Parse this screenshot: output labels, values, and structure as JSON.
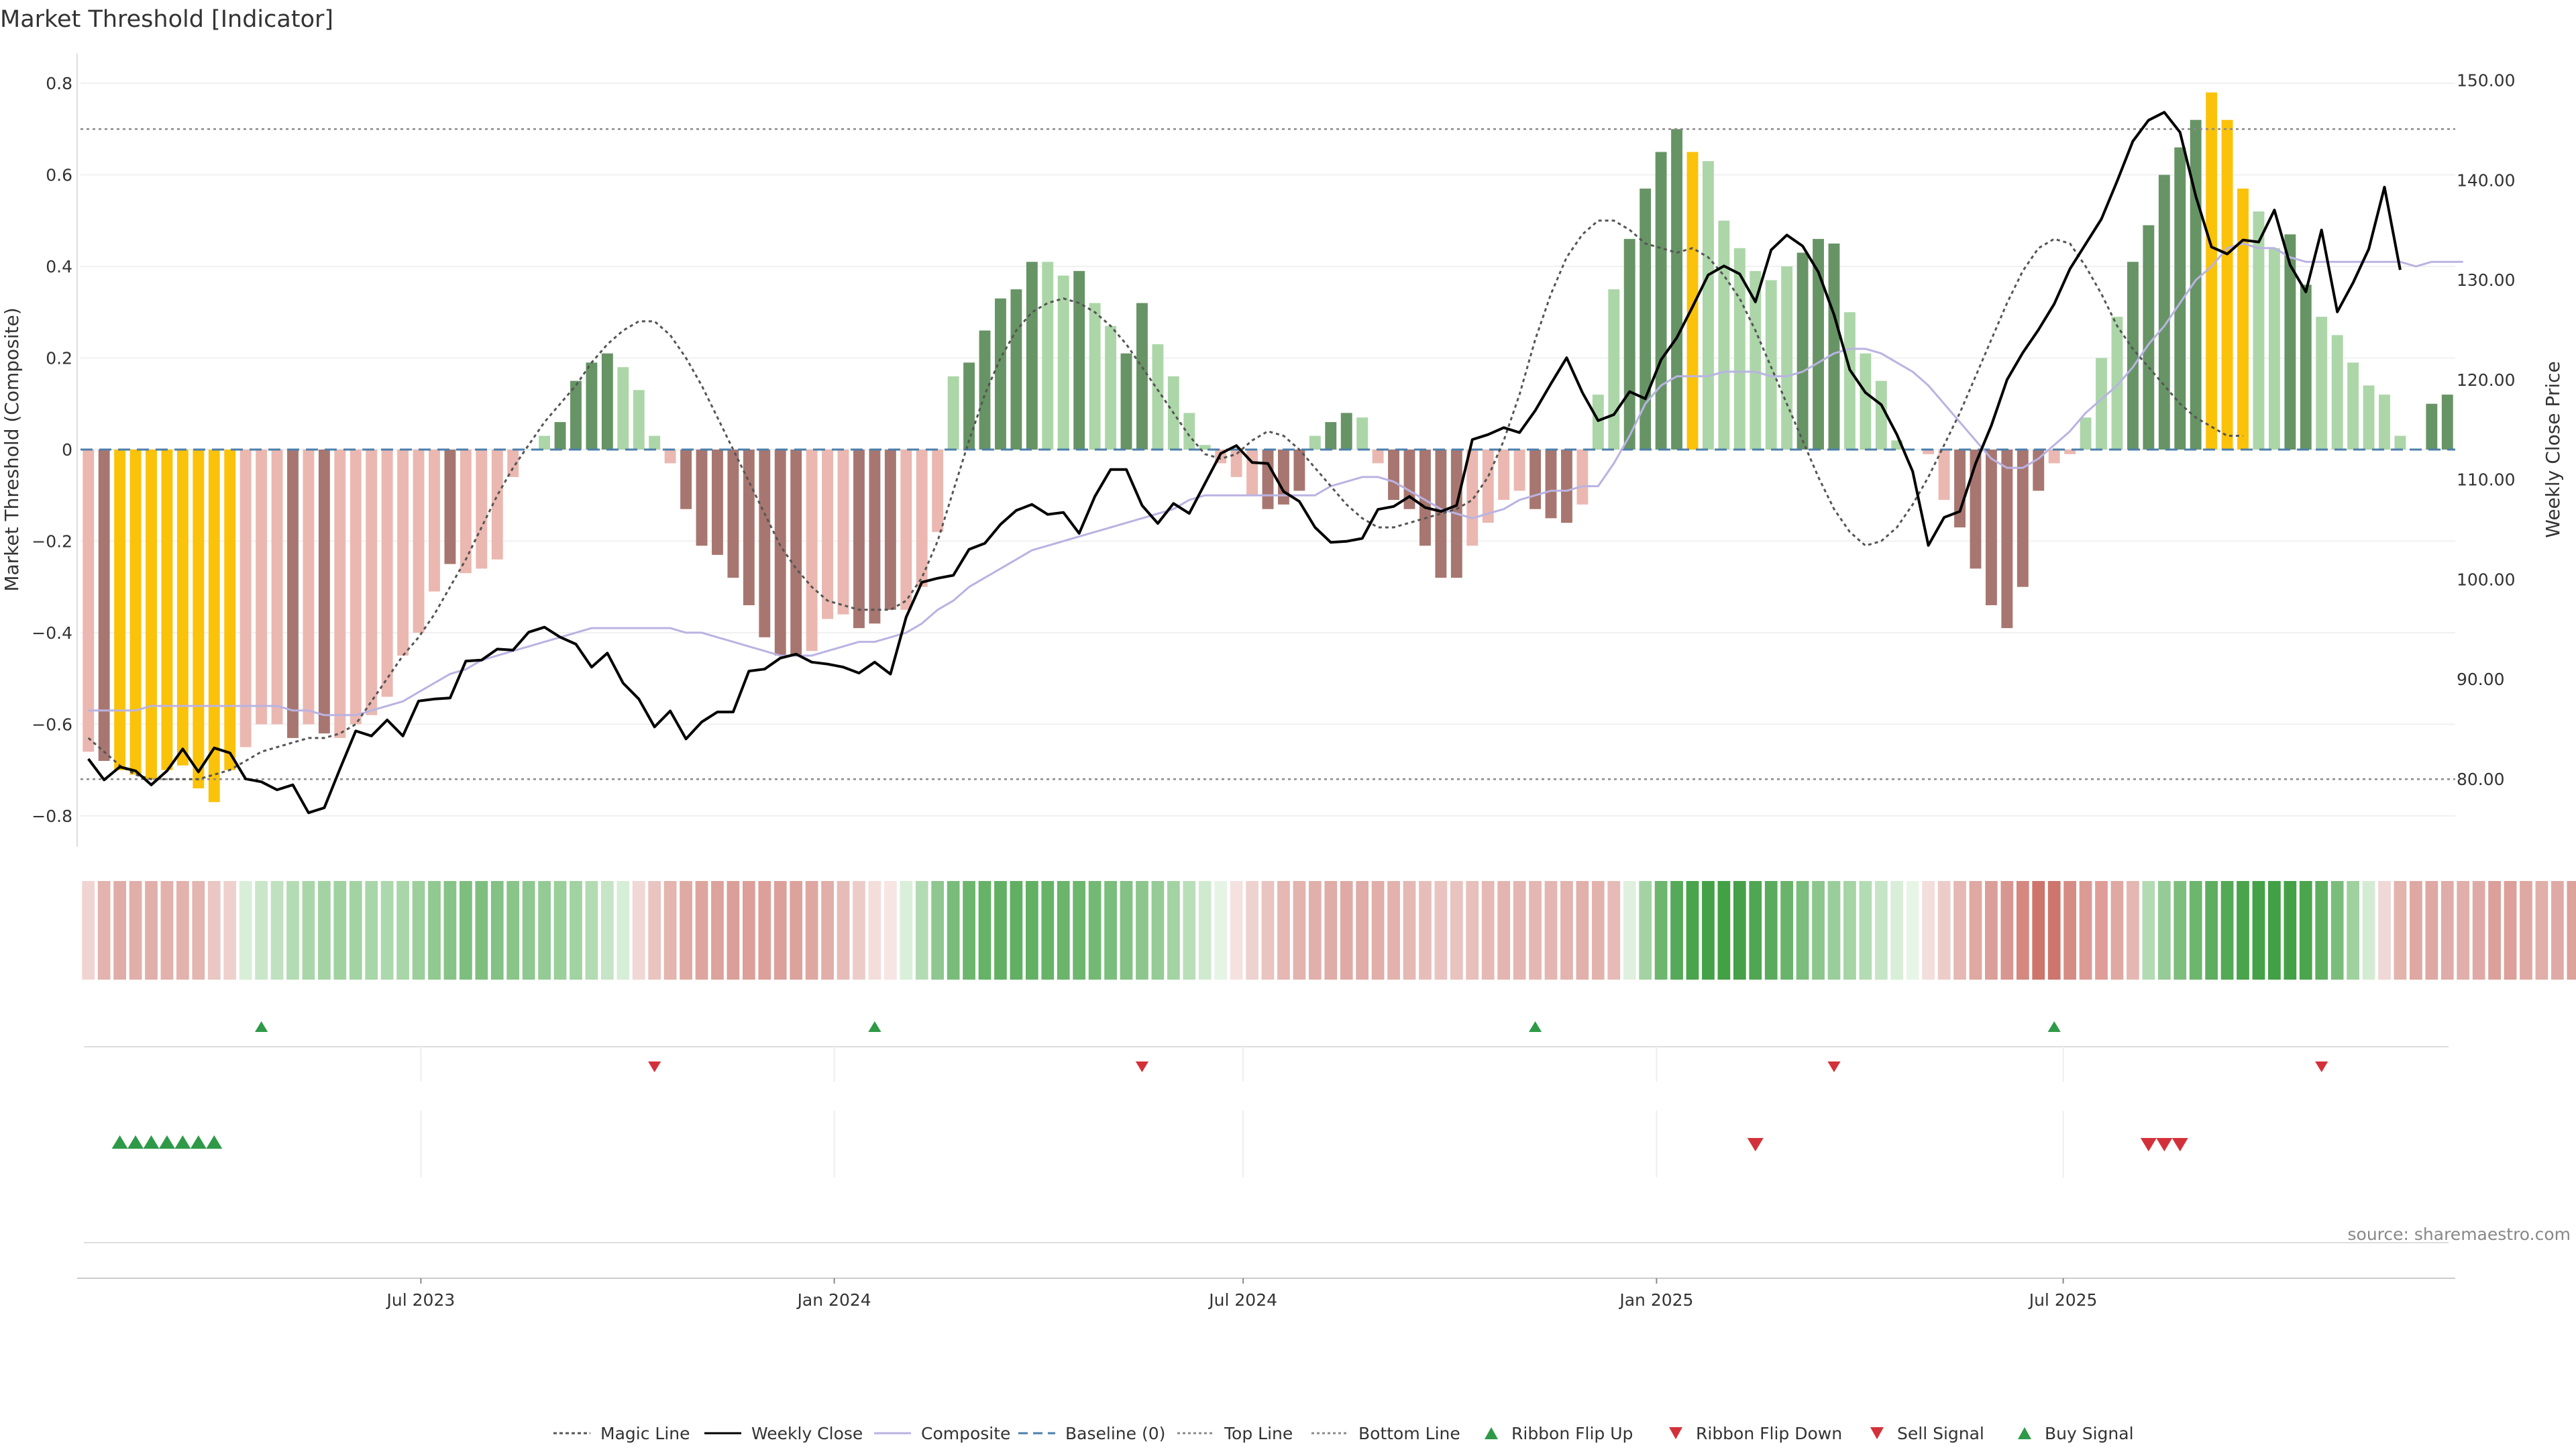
{
  "title": "Market Threshold [Indicator]",
  "source": "source: sharemaestro.com",
  "colors": {
    "bear_light": "#eab8b0",
    "bear_dark": "#a87670",
    "bull_light": "#acd6a8",
    "bull_dark": "#679465",
    "extreme": "#fbc20a",
    "weekly": "#000000",
    "composite": "#b9b3e2",
    "magic": "#555555",
    "baseline": "#4d7fab",
    "threshold": "#8a8a8a",
    "up_marker": "#2e9a47",
    "down_marker": "#d3313a"
  },
  "chart_data": {
    "type": "bar",
    "title": "Market Threshold [Indicator]",
    "ylabel": "Market Threshold (Composite)",
    "y2label": "Weekly Close Price",
    "ylim": [
      -0.85,
      0.85
    ],
    "y2lim": [
      74,
      152
    ],
    "yticks": [
      "0.8",
      "0.6",
      "0.4",
      "0.2",
      "0",
      "−0.2",
      "−0.4",
      "−0.6",
      "−0.8"
    ],
    "y2ticks": [
      "150.00",
      "140.00",
      "130.00",
      "120.00",
      "110.00",
      "100.00",
      "90.00",
      "80.00"
    ],
    "x_start": "2023-02-03",
    "x_interval_days": 7,
    "xticks": [
      "Jul 2023",
      "Jan 2024",
      "Jul 2024",
      "Jan 2025",
      "Jul 2025"
    ],
    "top_line": 0.7,
    "bottom_line": -0.72,
    "grid": true,
    "legend_position": "bottom",
    "bars": [
      -0.66,
      -0.68,
      -0.7,
      -0.71,
      -0.72,
      -0.7,
      -0.69,
      -0.74,
      -0.77,
      -0.7,
      -0.65,
      -0.6,
      -0.6,
      -0.63,
      -0.6,
      -0.62,
      -0.63,
      -0.6,
      -0.58,
      -0.54,
      -0.45,
      -0.4,
      -0.31,
      -0.25,
      -0.27,
      -0.26,
      -0.24,
      -0.06,
      0,
      0.03,
      0.06,
      0.15,
      0.19,
      0.21,
      0.18,
      0.13,
      0.03,
      -0.03,
      -0.13,
      -0.21,
      -0.23,
      -0.28,
      -0.34,
      -0.41,
      -0.45,
      -0.45,
      -0.44,
      -0.37,
      -0.36,
      -0.39,
      -0.38,
      -0.35,
      -0.35,
      -0.3,
      -0.18,
      0.16,
      0.19,
      0.26,
      0.33,
      0.35,
      0.41,
      0.41,
      0.38,
      0.39,
      0.32,
      0.27,
      0.21,
      0.32,
      0.23,
      0.16,
      0.08,
      0.01,
      -0.03,
      -0.06,
      -0.1,
      -0.13,
      -0.12,
      -0.09,
      0.03,
      0.06,
      0.08,
      0.07,
      -0.03,
      -0.11,
      -0.13,
      -0.21,
      -0.28,
      -0.28,
      -0.21,
      -0.16,
      -0.11,
      -0.09,
      -0.13,
      -0.15,
      -0.16,
      -0.12,
      0.12,
      0.35,
      0.46,
      0.57,
      0.65,
      0.7,
      0.65,
      0.63,
      0.5,
      0.44,
      0.39,
      0.37,
      0.4,
      0.43,
      0.46,
      0.45,
      0.3,
      0.21,
      0.15,
      0.02,
      0,
      -0.01,
      -0.11,
      -0.17,
      -0.26,
      -0.34,
      -0.39,
      -0.3,
      -0.09,
      -0.03,
      -0.01,
      0.07,
      0.2,
      0.29,
      0.41,
      0.49,
      0.6,
      0.66,
      0.72,
      0.78,
      0.72,
      0.57,
      0.52,
      0.44,
      0.47,
      0.36,
      0.29,
      0.25,
      0.19,
      0.14,
      0.12,
      0.03,
      0,
      0.1,
      0.12
    ],
    "bar_colors": [
      "L",
      "D",
      "Y",
      "Y",
      "Y",
      "Y",
      "Y",
      "Y",
      "Y",
      "Y",
      "L",
      "L",
      "L",
      "D",
      "L",
      "D",
      "L",
      "L",
      "L",
      "L",
      "L",
      "L",
      "L",
      "D",
      "L",
      "L",
      "L",
      "L",
      "L",
      "L",
      "D",
      "D",
      "D",
      "D",
      "L",
      "L",
      "L",
      "L",
      "D",
      "D",
      "D",
      "D",
      "D",
      "D",
      "D",
      "D",
      "L",
      "L",
      "L",
      "D",
      "D",
      "D",
      "L",
      "L",
      "L",
      "L",
      "D",
      "D",
      "D",
      "D",
      "D",
      "L",
      "L",
      "D",
      "L",
      "L",
      "D",
      "D",
      "L",
      "L",
      "L",
      "L",
      "L",
      "L",
      "L",
      "D",
      "D",
      "D",
      "L",
      "D",
      "D",
      "L",
      "L",
      "D",
      "D",
      "D",
      "D",
      "D",
      "L",
      "L",
      "L",
      "L",
      "D",
      "D",
      "D",
      "L",
      "L",
      "L",
      "D",
      "D",
      "D",
      "D",
      "Y",
      "L",
      "L",
      "L",
      "L",
      "L",
      "L",
      "D",
      "D",
      "D",
      "L",
      "L",
      "L",
      "L",
      "L",
      "L",
      "L",
      "D",
      "D",
      "D",
      "D",
      "D",
      "D",
      "L",
      "L",
      "L",
      "L",
      "L",
      "D",
      "D",
      "D",
      "D",
      "D",
      "Y",
      "Y",
      "Y",
      "L",
      "L",
      "D",
      "D",
      "L",
      "L",
      "L",
      "L",
      "L",
      "L",
      "L",
      "D",
      "D"
    ],
    "series": [
      {
        "name": "Magic Line",
        "values": [
          -0.63,
          -0.66,
          -0.69,
          -0.71,
          -0.72,
          -0.72,
          -0.72,
          -0.72,
          -0.71,
          -0.7,
          -0.68,
          -0.66,
          -0.65,
          -0.64,
          -0.63,
          -0.63,
          -0.62,
          -0.6,
          -0.55,
          -0.5,
          -0.45,
          -0.41,
          -0.36,
          -0.3,
          -0.24,
          -0.17,
          -0.1,
          -0.04,
          0.01,
          0.06,
          0.1,
          0.14,
          0.19,
          0.23,
          0.26,
          0.28,
          0.28,
          0.25,
          0.2,
          0.14,
          0.07,
          0,
          -0.07,
          -0.14,
          -0.21,
          -0.26,
          -0.3,
          -0.33,
          -0.34,
          -0.35,
          -0.35,
          -0.35,
          -0.33,
          -0.28,
          -0.2,
          -0.09,
          0.02,
          0.12,
          0.2,
          0.26,
          0.3,
          0.32,
          0.33,
          0.32,
          0.3,
          0.27,
          0.23,
          0.18,
          0.13,
          0.08,
          0.03,
          -0.01,
          -0.02,
          -0.01,
          0.02,
          0.04,
          0.03,
          0,
          -0.04,
          -0.08,
          -0.12,
          -0.15,
          -0.17,
          -0.17,
          -0.16,
          -0.15,
          -0.14,
          -0.13,
          -0.11,
          -0.06,
          0.02,
          0.12,
          0.24,
          0.34,
          0.42,
          0.47,
          0.5,
          0.5,
          0.48,
          0.45,
          0.44,
          0.43,
          0.44,
          0.42,
          0.38,
          0.33,
          0.26,
          0.18,
          0.1,
          0.02,
          -0.06,
          -0.13,
          -0.18,
          -0.21,
          -0.2,
          -0.17,
          -0.12,
          -0.06,
          0.01,
          0.08,
          0.16,
          0.24,
          0.32,
          0.39,
          0.44,
          0.46,
          0.45,
          0.4,
          0.34,
          0.27,
          0.22,
          0.18,
          0.14,
          0.1,
          0.07,
          0.05,
          0.03,
          0.03
        ]
      },
      {
        "name": "Weekly Close",
        "values": [
          82.0,
          79.9,
          81.2,
          80.8,
          79.4,
          80.8,
          83.0,
          80.7,
          83.1,
          82.6,
          80.0,
          79.7,
          78.9,
          79.4,
          76.6,
          77.1,
          81.0,
          84.8,
          84.3,
          85.9,
          84.3,
          87.8,
          88.0,
          88.1,
          91.8,
          91.9,
          93.0,
          92.9,
          94.7,
          95.2,
          94.2,
          93.5,
          91.2,
          92.6,
          89.6,
          88.0,
          85.2,
          86.8,
          84.0,
          85.7,
          86.7,
          86.7,
          90.8,
          91.0,
          92.1,
          92.5,
          91.7,
          91.5,
          91.2,
          90.6,
          91.7,
          90.5,
          96.2,
          99.7,
          100.1,
          100.4,
          103.0,
          103.6,
          105.5,
          106.9,
          107.5,
          106.5,
          106.7,
          104.6,
          108.3,
          111.0,
          111.0,
          107.4,
          105.6,
          107.6,
          106.6,
          109.6,
          112.6,
          113.4,
          111.7,
          111.6,
          108.8,
          107.8,
          105.2,
          103.7,
          103.8,
          104.1,
          107.0,
          107.3,
          108.3,
          107.2,
          106.8,
          107.4,
          114.0,
          114.5,
          115.2,
          114.7,
          116.9,
          119.6,
          122.2,
          118.7,
          115.9,
          116.5,
          118.8,
          118.1,
          122.0,
          124.2,
          127.3,
          130.5,
          131.4,
          130.6,
          127.8,
          133.0,
          134.5,
          133.4,
          130.8,
          126.5,
          121.0,
          118.7,
          117.5,
          114.5,
          110.8,
          103.4,
          106.2,
          106.8,
          111.6,
          115.4,
          120.0,
          122.7,
          125.0,
          127.6,
          131.1,
          133.6,
          136.1,
          139.9,
          143.9,
          146.0,
          146.8,
          144.8,
          138.4,
          133.3,
          132.6,
          134.0,
          133.8,
          137.0,
          131.5,
          128.8,
          135.0,
          126.8,
          129.7,
          133.1,
          139.3,
          131.0
        ]
      },
      {
        "name": "Composite",
        "values": [
          -0.57,
          -0.57,
          -0.57,
          -0.57,
          -0.56,
          -0.56,
          -0.56,
          -0.56,
          -0.56,
          -0.56,
          -0.56,
          -0.56,
          -0.56,
          -0.57,
          -0.57,
          -0.58,
          -0.58,
          -0.58,
          -0.57,
          -0.56,
          -0.55,
          -0.53,
          -0.51,
          -0.49,
          -0.48,
          -0.46,
          -0.45,
          -0.44,
          -0.43,
          -0.42,
          -0.41,
          -0.4,
          -0.39,
          -0.39,
          -0.39,
          -0.39,
          -0.39,
          -0.39,
          -0.4,
          -0.4,
          -0.41,
          -0.42,
          -0.43,
          -0.44,
          -0.45,
          -0.45,
          -0.45,
          -0.44,
          -0.43,
          -0.42,
          -0.42,
          -0.41,
          -0.4,
          -0.38,
          -0.35,
          -0.33,
          -0.3,
          -0.28,
          -0.26,
          -0.24,
          -0.22,
          -0.21,
          -0.2,
          -0.19,
          -0.18,
          -0.17,
          -0.16,
          -0.15,
          -0.14,
          -0.13,
          -0.11,
          -0.1,
          -0.1,
          -0.1,
          -0.1,
          -0.1,
          -0.1,
          -0.1,
          -0.1,
          -0.08,
          -0.07,
          -0.06,
          -0.06,
          -0.07,
          -0.09,
          -0.11,
          -0.13,
          -0.14,
          -0.15,
          -0.14,
          -0.13,
          -0.11,
          -0.1,
          -0.09,
          -0.09,
          -0.08,
          -0.08,
          -0.03,
          0.03,
          0.1,
          0.14,
          0.16,
          0.16,
          0.16,
          0.17,
          0.17,
          0.17,
          0.16,
          0.16,
          0.17,
          0.19,
          0.21,
          0.22,
          0.22,
          0.21,
          0.19,
          0.17,
          0.14,
          0.1,
          0.06,
          0.02,
          -0.02,
          -0.04,
          -0.04,
          -0.02,
          0.01,
          0.04,
          0.08,
          0.11,
          0.14,
          0.18,
          0.23,
          0.27,
          0.32,
          0.37,
          0.4,
          0.44,
          0.45,
          0.44,
          0.44,
          0.42,
          0.41,
          0.41,
          0.41,
          0.41,
          0.41,
          0.41,
          0.41,
          0.4,
          0.41,
          0.41,
          0.41
        ]
      }
    ],
    "ribbon_colors": [
      "#f0d4d1",
      "#e3b3ae",
      "#e0aca7",
      "#e1afaa",
      "#e1afaa",
      "#e2b1ac",
      "#e3b2ad",
      "#e4b6b1",
      "#e9c7c3",
      "#eed0cd",
      "#d8eed8",
      "#c9e6c8",
      "#bfe1bf",
      "#b4dcb4",
      "#a9d6a9",
      "#a3d3a3",
      "#a0d1a0",
      "#a3d3a3",
      "#a8d6a8",
      "#add8ad",
      "#a8d6a8",
      "#9ccf9c",
      "#91c991",
      "#86c386",
      "#7dbe7e",
      "#7ebf7f",
      "#83c184",
      "#89c489",
      "#8ec78f",
      "#94cb94",
      "#9acf9a",
      "#a1d2a1",
      "#b3dbb3",
      "#c6e4c6",
      "#d6edd6",
      "#efd8d5",
      "#e9c4c0",
      "#e4b4af",
      "#e0aaa4",
      "#dea59f",
      "#dca29c",
      "#db9f99",
      "#dc9f99",
      "#dd9f99",
      "#dca09a",
      "#dca29c",
      "#dea7a1",
      "#e1aea9",
      "#e6bcb8",
      "#ecccc9",
      "#f3dedc",
      "#f7e5e4",
      "#d9efd9",
      "#b3dbb3",
      "#8ec78f",
      "#79bc7a",
      "#6cb66d",
      "#66b267",
      "#63b064",
      "#61af62",
      "#62b063",
      "#67b368",
      "#6ab46b",
      "#6db66e",
      "#73b974",
      "#7bbd7c",
      "#83c184",
      "#8cc68c",
      "#95cb96",
      "#a3d3a3",
      "#b9dfb9",
      "#d0ead0",
      "#e6f4e6",
      "#f4e2e0",
      "#eed2cf",
      "#e9c4c0",
      "#e5b8b3",
      "#e3b3ae",
      "#e1b0ab",
      "#e0aca7",
      "#dfaaa5",
      "#e0aca7",
      "#e1aea9",
      "#e3b2ad",
      "#e5b8b3",
      "#e7bdb9",
      "#e9c3bf",
      "#e9c3bf",
      "#e7bfbb",
      "#e5b9b4",
      "#e4b5b0",
      "#e5b6b1",
      "#e5b7b2",
      "#e4b6b1",
      "#e3b3ae",
      "#e1b0ab",
      "#e3b2ad",
      "#e6bbb7",
      "#dff0de",
      "#a3d3a3",
      "#6cb66d",
      "#56a958",
      "#4aa44c",
      "#44a147",
      "#42a045",
      "#469f49",
      "#50a753",
      "#5aab5c",
      "#69b46a",
      "#7bbd7c",
      "#8cc68c",
      "#99ce9a",
      "#a5d4a5",
      "#b4dcb4",
      "#c6e4c6",
      "#d8eed8",
      "#e7f5e7",
      "#f3dedc",
      "#ecccc9",
      "#e5b8b3",
      "#dfa8a2",
      "#db9e98",
      "#d89690",
      "#d4887f",
      "#cd746b",
      "#cd766d",
      "#d58c84",
      "#db9b95",
      "#df9d97",
      "#dfa8a2",
      "#e5b7b2",
      "#b3dbb3",
      "#95cb96",
      "#7dbe7e",
      "#6cb66d",
      "#5fae60",
      "#53a955",
      "#4aa44c",
      "#44a147",
      "#42a045",
      "#44a147",
      "#4ba54d",
      "#5cad5e",
      "#7abd7b",
      "#9fd19f",
      "#d4ebd3",
      "#efd8d5",
      "#e3b3ae",
      "#dfa8a2",
      "#dfa8a2",
      "#e0aca7",
      "#e1afaa",
      "#dfaaa5",
      "#dba09a",
      "#dc9f99",
      "#dfa8a2",
      "#e1aea9",
      "#dfaaa5",
      "#dca29c"
    ],
    "ribbon_flip_up_index": [
      11,
      50,
      92,
      125
    ],
    "ribbon_flip_down_index": [
      36,
      67,
      111,
      142
    ],
    "buy_signal_index": [
      2,
      3,
      4,
      5,
      6,
      7,
      8
    ],
    "sell_signal_index": [
      106,
      131,
      132,
      133
    ],
    "legend": [
      "Magic Line",
      "Weekly Close",
      "Composite",
      "Baseline (0)",
      "Top Line",
      "Bottom Line",
      "Ribbon Flip Up",
      "Ribbon Flip Down",
      "Sell Signal",
      "Buy Signal"
    ]
  }
}
